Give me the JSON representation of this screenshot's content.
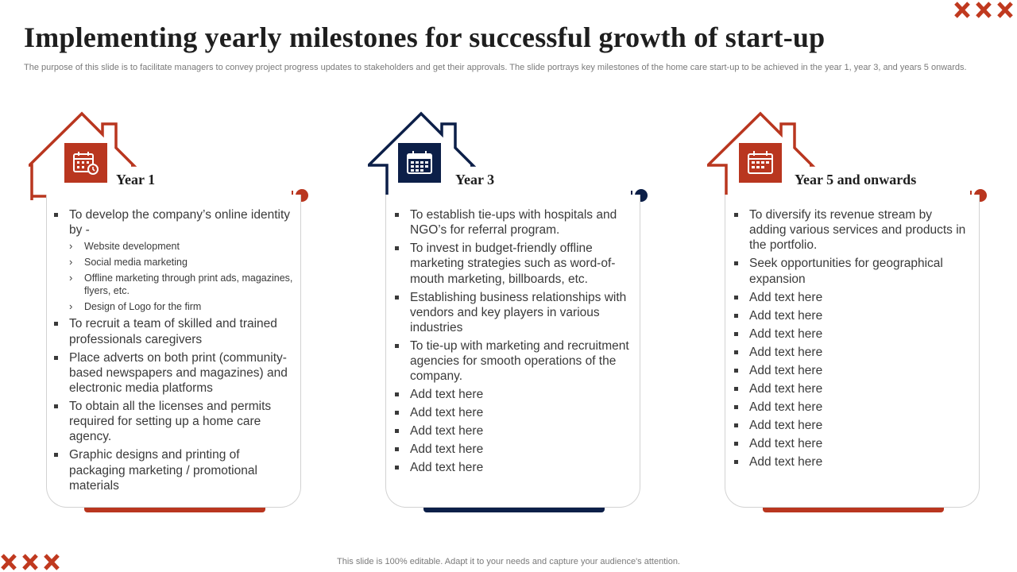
{
  "header": {
    "title": "Implementing yearly milestones for successful growth of start-up",
    "subtitle": "The purpose of this slide is to facilitate managers to convey project progress updates to stakeholders and get their approvals. The slide portrays key milestones of the home care start-up to  be achieved in the year 1, year 3, and years 5 onwards."
  },
  "footer": {
    "text": "This slide is 100% editable. Adapt it to your needs and capture your audience's attention."
  },
  "colors": {
    "accent_red": "#b9361f",
    "accent_navy": "#0c1f48"
  },
  "columns": [
    {
      "title": "Year 1",
      "icon": "calendar-clock-icon",
      "items": [
        "To develop the company’s online identity by -",
        "To recruit a team of skilled and trained professionals caregivers",
        "Place adverts on both print (community-based newspapers and magazines) and electronic media platforms",
        "To obtain all the licenses and permits required for setting up a home care agency.",
        "Graphic designs and printing of packaging marketing / promotional materials"
      ],
      "subitems": [
        "Website development",
        "Social media marketing",
        "Offline marketing through print ads, magazines, flyers, etc.",
        "Design of Logo for the firm"
      ]
    },
    {
      "title": "Year 3",
      "icon": "calendar-icon",
      "items": [
        "To establish tie-ups with hospitals and NGO’s for referral program.",
        "To invest in budget-friendly  offline marketing strategies such as word-of-mouth marketing, billboards, etc.",
        "Establishing business relationships with vendors and key players in various industries",
        "To tie-up with marketing and recruitment agencies for smooth operations of the company.",
        "Add text here",
        "Add text here",
        "Add text here",
        "Add text here",
        "Add text here"
      ]
    },
    {
      "title": "Year 5 and onwards",
      "icon": "calendar-icon",
      "items": [
        "To diversify its revenue stream by adding various services and products in the portfolio.",
        "Seek opportunities for geographical expansion",
        "Add text here",
        "Add text here",
        "Add text here",
        "Add text here",
        "Add text here",
        "Add text here",
        "Add text here",
        "Add text here",
        "Add text here",
        "Add text here"
      ]
    }
  ]
}
